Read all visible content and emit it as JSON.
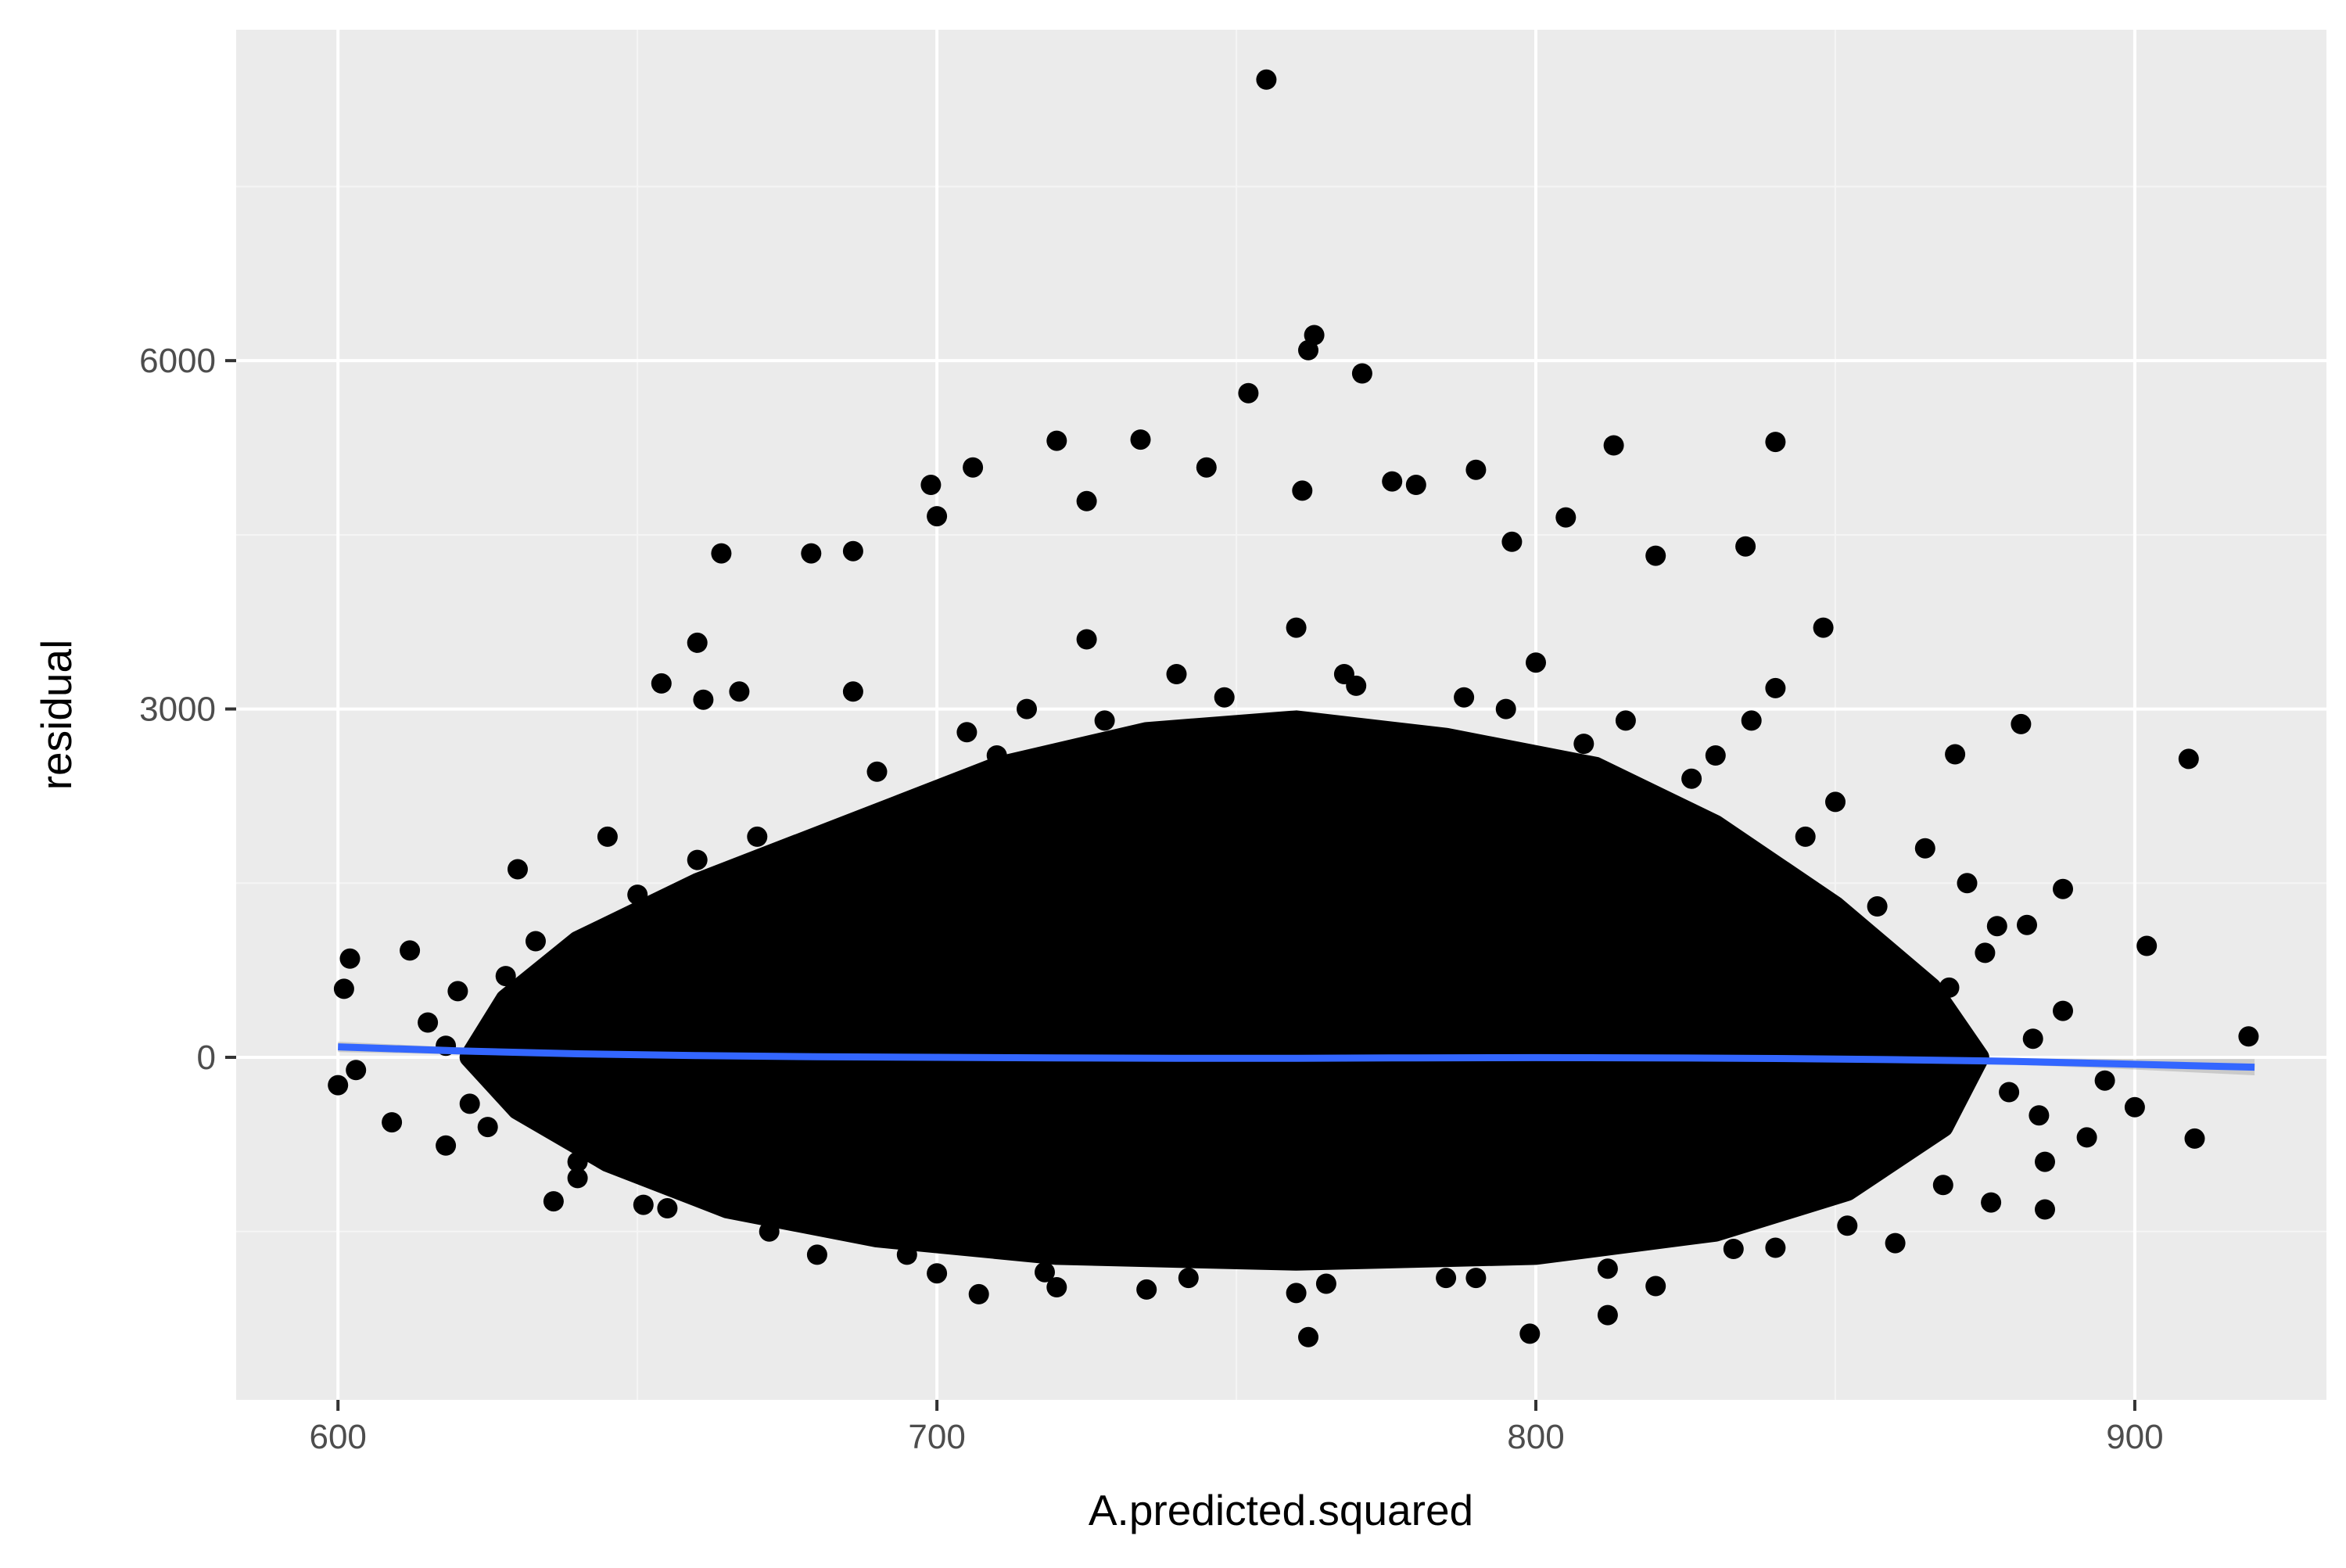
{
  "colors": {
    "panel_background": "#ebebeb",
    "grid_major": "#ffffff",
    "grid_minor": "#f5f5f5",
    "tick_mark": "#333333",
    "tick_label": "#4d4d4d",
    "point": "#000000",
    "smooth_line": "#3366ff",
    "confidence_band": "#999999"
  },
  "chart_data": {
    "type": "scatter",
    "title": "",
    "xlabel": "A.predicted.squared",
    "ylabel": "residual",
    "xlim": [
      583,
      932
    ],
    "ylim": [
      -2950,
      8850
    ],
    "x_ticks": [
      600,
      700,
      800,
      900
    ],
    "x_tick_labels": [
      "600",
      "700",
      "800",
      "900"
    ],
    "y_ticks": [
      0,
      3000,
      6000
    ],
    "y_tick_labels": [
      "0",
      "3000",
      "6000"
    ],
    "grid": true,
    "legend": "none",
    "series": [
      {
        "kind": "points",
        "points": [
          [
            755,
            8420
          ],
          [
            763,
            6220
          ],
          [
            762,
            6090
          ],
          [
            771,
            5890
          ],
          [
            752,
            5720
          ],
          [
            840,
            5300
          ],
          [
            813,
            5270
          ],
          [
            720,
            5310
          ],
          [
            734,
            5320
          ],
          [
            706,
            5080
          ],
          [
            790,
            5060
          ],
          [
            745,
            5080
          ],
          [
            699,
            4930
          ],
          [
            776,
            4960
          ],
          [
            780,
            4930
          ],
          [
            761,
            4880
          ],
          [
            725,
            4790
          ],
          [
            805,
            4650
          ],
          [
            700,
            4660
          ],
          [
            664,
            4340
          ],
          [
            679,
            4340
          ],
          [
            686,
            4360
          ],
          [
            835,
            4400
          ],
          [
            820,
            4320
          ],
          [
            796,
            4440
          ],
          [
            660,
            3570
          ],
          [
            654,
            3220
          ],
          [
            667,
            3150
          ],
          [
            661,
            3080
          ],
          [
            686,
            3150
          ],
          [
            840,
            3180
          ],
          [
            848,
            3700
          ],
          [
            881,
            2870
          ],
          [
            909,
            2570
          ],
          [
            870,
            2610
          ],
          [
            902,
            960
          ],
          [
            888,
            1450
          ],
          [
            919,
            180
          ],
          [
            910,
            -700
          ],
          [
            900,
            -430
          ],
          [
            602,
            850
          ],
          [
            601,
            590
          ],
          [
            612,
            920
          ],
          [
            600,
            -240
          ],
          [
            603,
            -110
          ],
          [
            609,
            -560
          ],
          [
            618,
            -760
          ],
          [
            620,
            570
          ],
          [
            636,
            -1240
          ],
          [
            651,
            -1270
          ],
          [
            707,
            -2040
          ],
          [
            762,
            -2410
          ],
          [
            799,
            -2380
          ],
          [
            812,
            -2220
          ],
          [
            820,
            -1970
          ],
          [
            760,
            -2030
          ],
          [
            885,
            -1310
          ],
          [
            882,
            1140
          ],
          [
            877,
            1130
          ],
          [
            885,
            -900
          ],
          [
            892,
            -690
          ],
          [
            883,
            160
          ],
          [
            720,
            -1980
          ],
          [
            735,
            -2000
          ],
          [
            640,
            -1040
          ],
          [
            680,
            -1700
          ],
          [
            700,
            -1860
          ],
          [
            785,
            -1900
          ],
          [
            840,
            -1640
          ],
          [
            860,
            -1600
          ],
          [
            630,
            1620
          ],
          [
            645,
            1900
          ],
          [
            690,
            2460
          ],
          [
            705,
            2800
          ],
          [
            725,
            3600
          ],
          [
            740,
            3300
          ],
          [
            770,
            3200
          ],
          [
            795,
            3000
          ],
          [
            815,
            2900
          ],
          [
            830,
            2600
          ],
          [
            850,
            2200
          ],
          [
            865,
            1800
          ],
          [
            875,
            900
          ],
          [
            888,
            400
          ],
          [
            895,
            -200
          ],
          [
            615,
            300
          ],
          [
            622,
            -400
          ],
          [
            628,
            700
          ],
          [
            650,
            1400
          ],
          [
            670,
            1900
          ],
          [
            693,
            2000
          ],
          [
            710,
            2600
          ],
          [
            728,
            2900
          ],
          [
            748,
            3100
          ],
          [
            768,
            3300
          ],
          [
            788,
            3100
          ],
          [
            808,
            2700
          ],
          [
            826,
            2400
          ],
          [
            845,
            1900
          ],
          [
            857,
            1300
          ],
          [
            869,
            600
          ],
          [
            879,
            -300
          ],
          [
            868,
            -1100
          ],
          [
            852,
            -1450
          ],
          [
            833,
            -1650
          ],
          [
            812,
            -1820
          ],
          [
            790,
            -1900
          ],
          [
            765,
            -1950
          ],
          [
            742,
            -1900
          ],
          [
            718,
            -1850
          ],
          [
            695,
            -1700
          ],
          [
            672,
            -1500
          ],
          [
            655,
            -1300
          ],
          [
            640,
            -900
          ],
          [
            625,
            -600
          ],
          [
            618,
            100
          ],
          [
            633,
            1000
          ],
          [
            660,
            1700
          ],
          [
            715,
            3000
          ],
          [
            760,
            3700
          ],
          [
            800,
            3400
          ],
          [
            836,
            2900
          ],
          [
            872,
            1500
          ],
          [
            884,
            -500
          ],
          [
            876,
            -1250
          ]
        ]
      },
      {
        "kind": "density_cloud",
        "outline": [
          [
            622,
            0
          ],
          [
            628,
            500
          ],
          [
            640,
            1000
          ],
          [
            660,
            1500
          ],
          [
            685,
            2000
          ],
          [
            710,
            2500
          ],
          [
            735,
            2800
          ],
          [
            760,
            2900
          ],
          [
            785,
            2750
          ],
          [
            810,
            2500
          ],
          [
            830,
            2000
          ],
          [
            850,
            1300
          ],
          [
            866,
            600
          ],
          [
            874,
            0
          ],
          [
            868,
            -600
          ],
          [
            852,
            -1150
          ],
          [
            830,
            -1500
          ],
          [
            800,
            -1700
          ],
          [
            760,
            -1750
          ],
          [
            720,
            -1700
          ],
          [
            690,
            -1550
          ],
          [
            665,
            -1300
          ],
          [
            645,
            -900
          ],
          [
            630,
            -450
          ]
        ]
      },
      {
        "kind": "smooth_fit",
        "x": [
          600,
          620,
          640,
          660,
          680,
          700,
          720,
          740,
          760,
          780,
          800,
          820,
          840,
          860,
          880,
          900,
          920
        ],
        "y": [
          90,
          55,
          30,
          15,
          5,
          0,
          -5,
          -8,
          -8,
          -5,
          -3,
          -5,
          -10,
          -20,
          -35,
          -60,
          -85
        ],
        "band_halfwidth": [
          45,
          30,
          20,
          15,
          12,
          10,
          8,
          8,
          8,
          8,
          8,
          10,
          12,
          18,
          28,
          45,
          70
        ]
      }
    ]
  }
}
